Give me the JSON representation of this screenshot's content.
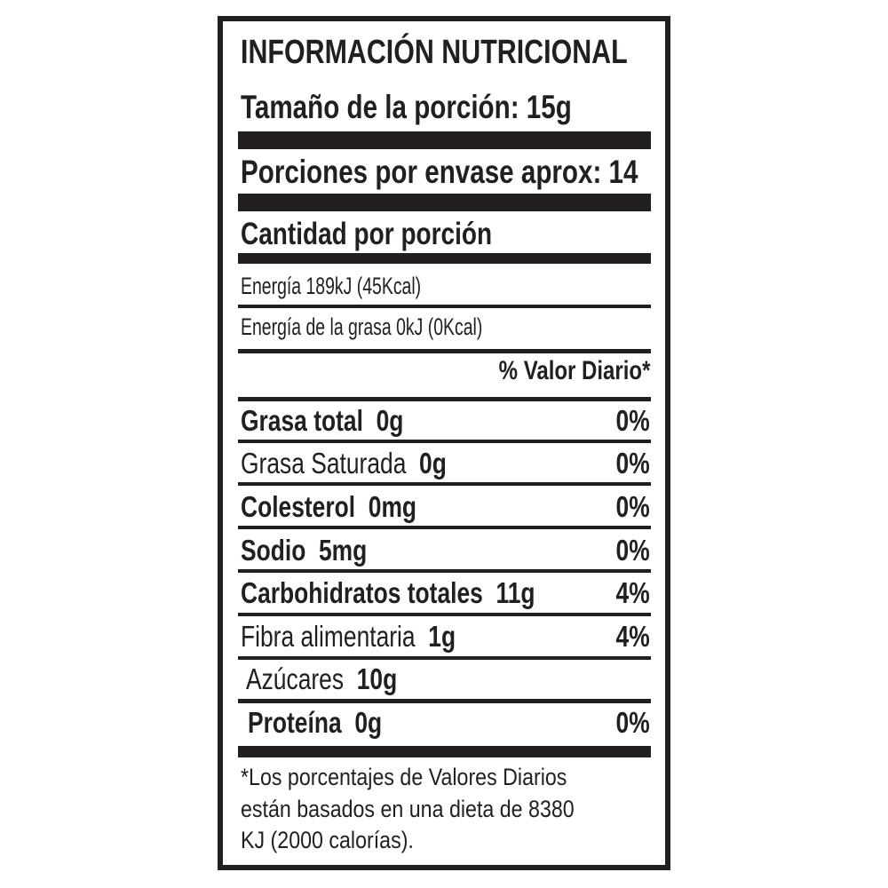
{
  "title": "INFORMACIÓN NUTRICIONAL",
  "serving_size": "Tamaño de la porción: 15g",
  "servings_per_container": "Porciones por envase aprox: 14",
  "amount_per_serving": "Cantidad por porción",
  "energy": "Energía 189kJ (45Kcal)",
  "energy_from_fat": "Energía de la grasa 0kJ  (0Kcal)",
  "daily_value_header": "% Valor Diario*",
  "nutrients": [
    {
      "name": "Grasa total",
      "amount": "0g",
      "dv": "0%"
    },
    {
      "name": "Grasa Saturada",
      "amount": "0g",
      "dv": "0%"
    },
    {
      "name": "Colesterol",
      "amount": "0mg",
      "dv": "0%"
    },
    {
      "name": "Sodio",
      "amount": "5mg",
      "dv": "0%"
    },
    {
      "name": "Carbohidratos totales",
      "amount": "11g",
      "dv": "4%"
    },
    {
      "name": "Fibra alimentaria",
      "amount": "1g",
      "dv": "4%"
    },
    {
      "name": "Azúcares",
      "amount": "10g",
      "dv": ""
    },
    {
      "name": "Proteína",
      "amount": "0g",
      "dv": "0%"
    }
  ],
  "footnote": [
    "*Los porcentajes de Valores Diarios",
    "están basados en una dieta de 8380",
    "KJ (2000 calorías)."
  ]
}
